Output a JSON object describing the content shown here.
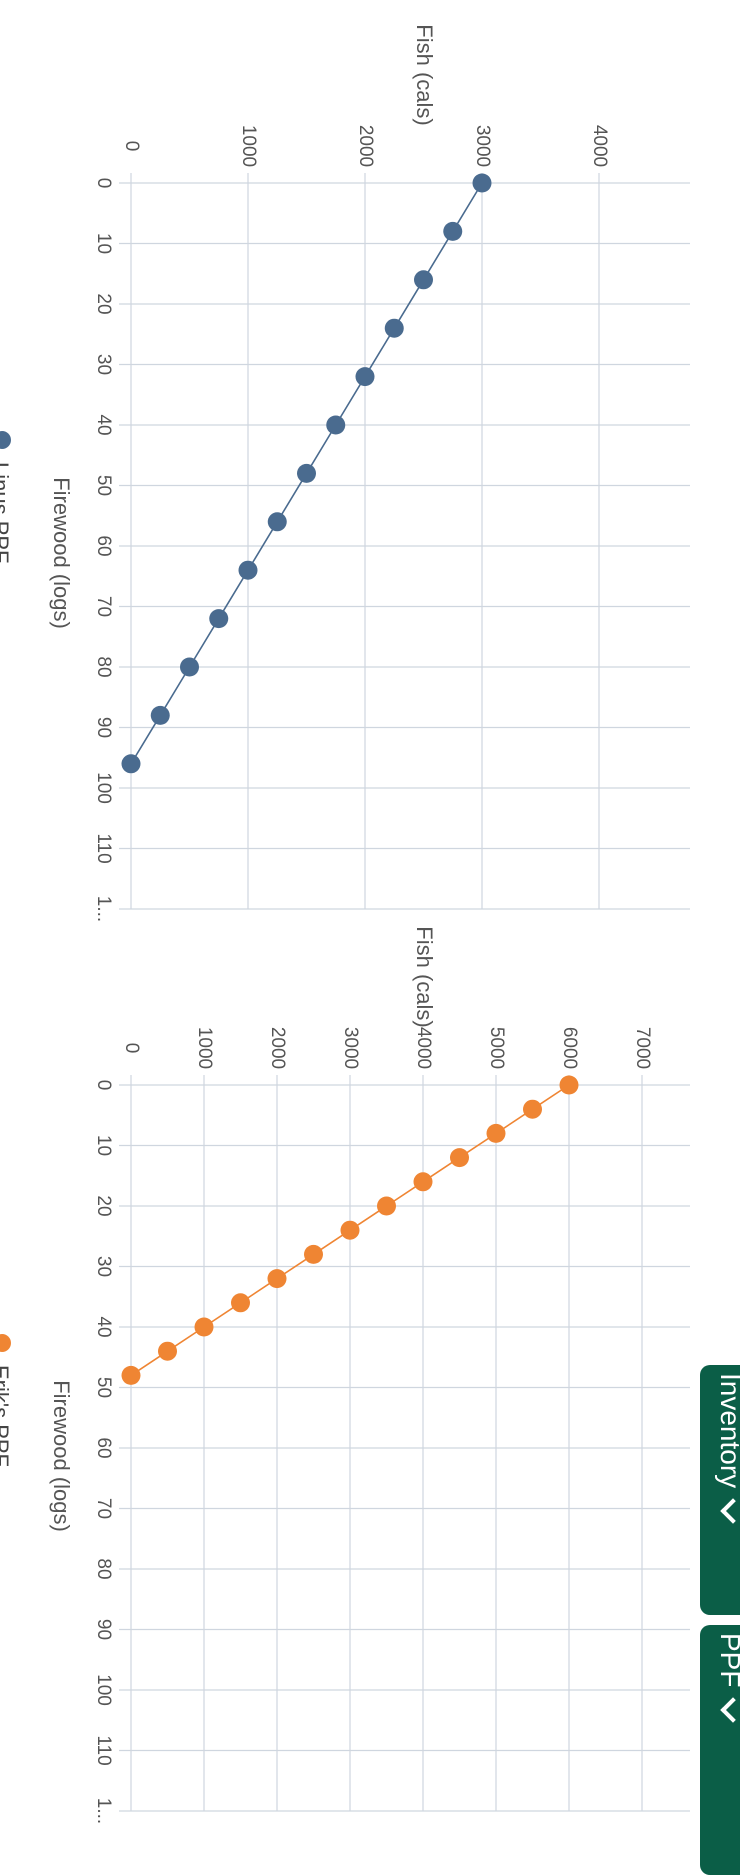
{
  "chart_data": [
    {
      "type": "line",
      "xlabel": "Firewood (logs)",
      "ylabel": "Fish (cals)",
      "x_ticks": [
        "0",
        "10",
        "20",
        "30",
        "40",
        "50",
        "60",
        "70",
        "80",
        "90",
        "100",
        "110",
        "1..."
      ],
      "y_ticks": [
        "0",
        "1000",
        "2000",
        "3000",
        "4000"
      ],
      "xlim": [
        0,
        120
      ],
      "ylim": [
        0,
        4000
      ],
      "grid": true,
      "legend_position": "bottom",
      "series": [
        {
          "name": "Linus PPF",
          "color": "#4a6b8f",
          "x": [
            0,
            8,
            16,
            24,
            32,
            40,
            48,
            56,
            64,
            72,
            80,
            88,
            96
          ],
          "y": [
            3000,
            2750,
            2500,
            2250,
            2000,
            1750,
            1500,
            1250,
            1000,
            750,
            500,
            250,
            0
          ]
        }
      ]
    },
    {
      "type": "line",
      "xlabel": "Firewood (logs)",
      "ylabel": "Fish (cals)",
      "x_ticks": [
        "0",
        "10",
        "20",
        "30",
        "40",
        "50",
        "60",
        "70",
        "80",
        "90",
        "100",
        "110",
        "1..."
      ],
      "y_ticks": [
        "0",
        "1000",
        "2000",
        "3000",
        "4000",
        "5000",
        "6000",
        "7000"
      ],
      "xlim": [
        0,
        120
      ],
      "ylim": [
        0,
        7000
      ],
      "grid": true,
      "legend_position": "bottom",
      "series": [
        {
          "name": "Erik's PPF",
          "color": "#ef8533",
          "x": [
            0,
            4,
            8,
            12,
            16,
            20,
            24,
            28,
            32,
            36,
            40,
            44,
            48
          ],
          "y": [
            6000,
            5500,
            5000,
            4500,
            4000,
            3500,
            3000,
            2500,
            2000,
            1500,
            1000,
            500,
            0
          ]
        }
      ]
    }
  ],
  "buttons": {
    "inventory_label": "Inventory",
    "ppf_label": "PPF"
  }
}
